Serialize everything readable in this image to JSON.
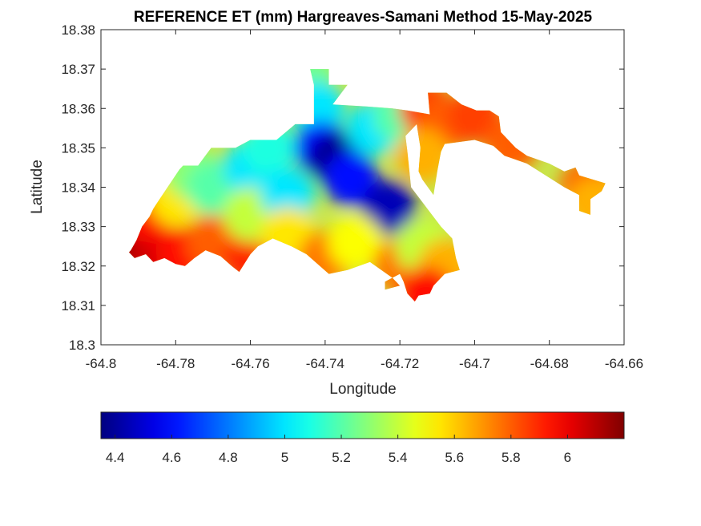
{
  "chart_data": {
    "type": "heatmap",
    "title": "REFERENCE ET (mm) Hargreaves-Samani Method  15-May-2025",
    "xlabel": "Longitude",
    "ylabel": "Latitude",
    "xlim": [
      -64.8,
      -64.66
    ],
    "ylim": [
      18.3,
      18.38
    ],
    "x_ticks": [
      "-64.8",
      "-64.78",
      "-64.76",
      "-64.74",
      "-64.72",
      "-64.7",
      "-64.68",
      "-64.66"
    ],
    "y_ticks": [
      "18.38",
      "18.37",
      "18.36",
      "18.35",
      "18.34",
      "18.33",
      "18.32",
      "18.31",
      "18.3"
    ],
    "grid": false,
    "colormap": "jet",
    "colorbar": {
      "orientation": "horizontal",
      "placement": "bottom",
      "range": [
        4.35,
        6.2
      ],
      "ticks": [
        "4.4",
        "4.6",
        "4.8",
        "5",
        "5.2",
        "5.4",
        "5.6",
        "5.8",
        "6"
      ]
    },
    "field_samples": [
      {
        "lon": -64.791,
        "lat": 18.325,
        "et": 6.15
      },
      {
        "lon": -64.785,
        "lat": 18.321,
        "et": 6.05
      },
      {
        "lon": -64.778,
        "lat": 18.323,
        "et": 5.95
      },
      {
        "lon": -64.77,
        "lat": 18.326,
        "et": 5.8
      },
      {
        "lon": -64.76,
        "lat": 18.322,
        "et": 5.9
      },
      {
        "lon": -64.788,
        "lat": 18.333,
        "et": 5.95
      },
      {
        "lon": -64.78,
        "lat": 18.337,
        "et": 5.55
      },
      {
        "lon": -64.776,
        "lat": 18.344,
        "et": 5.3
      },
      {
        "lon": -64.77,
        "lat": 18.34,
        "et": 5.2
      },
      {
        "lon": -64.76,
        "lat": 18.345,
        "et": 5.0
      },
      {
        "lon": -64.755,
        "lat": 18.35,
        "et": 5.1
      },
      {
        "lon": -64.76,
        "lat": 18.333,
        "et": 5.4
      },
      {
        "lon": -64.75,
        "lat": 18.338,
        "et": 5.0
      },
      {
        "lon": -64.75,
        "lat": 18.328,
        "et": 5.55
      },
      {
        "lon": -64.74,
        "lat": 18.322,
        "et": 5.75
      },
      {
        "lon": -64.745,
        "lat": 18.368,
        "et": 5.25
      },
      {
        "lon": -64.742,
        "lat": 18.36,
        "et": 5.0
      },
      {
        "lon": -64.741,
        "lat": 18.35,
        "et": 4.6
      },
      {
        "lon": -64.737,
        "lat": 18.347,
        "et": 4.38
      },
      {
        "lon": -64.733,
        "lat": 18.342,
        "et": 4.6
      },
      {
        "lon": -64.723,
        "lat": 18.335,
        "et": 4.45
      },
      {
        "lon": -64.727,
        "lat": 18.355,
        "et": 5.0
      },
      {
        "lon": -64.72,
        "lat": 18.358,
        "et": 5.2
      },
      {
        "lon": -64.713,
        "lat": 18.36,
        "et": 5.85
      },
      {
        "lon": -64.708,
        "lat": 18.356,
        "et": 5.8
      },
      {
        "lon": -64.714,
        "lat": 18.348,
        "et": 5.65
      },
      {
        "lon": -64.732,
        "lat": 18.326,
        "et": 5.5
      },
      {
        "lon": -64.72,
        "lat": 18.32,
        "et": 5.75
      },
      {
        "lon": -64.714,
        "lat": 18.325,
        "et": 5.4
      },
      {
        "lon": -64.708,
        "lat": 18.32,
        "et": 5.65
      },
      {
        "lon": -64.713,
        "lat": 18.313,
        "et": 5.95
      },
      {
        "lon": -64.7,
        "lat": 18.358,
        "et": 5.85
      },
      {
        "lon": -64.69,
        "lat": 18.351,
        "et": 5.8
      },
      {
        "lon": -64.67,
        "lat": 18.34,
        "et": 5.8
      },
      {
        "lon": -64.668,
        "lat": 18.336,
        "et": 5.65
      }
    ],
    "domain_outline": [
      [
        -64.7925,
        18.3235
      ],
      [
        -64.792,
        18.324
      ],
      [
        -64.7905,
        18.3265
      ],
      [
        -64.789,
        18.33
      ],
      [
        -64.787,
        18.3325
      ],
      [
        -64.786,
        18.3345
      ],
      [
        -64.785,
        18.336
      ],
      [
        -64.779,
        18.3445
      ],
      [
        -64.778,
        18.3455
      ],
      [
        -64.774,
        18.3455
      ],
      [
        -64.7705,
        18.35
      ],
      [
        -64.764,
        18.35
      ],
      [
        -64.76,
        18.352
      ],
      [
        -64.753,
        18.352
      ],
      [
        -64.748,
        18.356
      ],
      [
        -64.743,
        18.356
      ],
      [
        -64.743,
        18.366
      ],
      [
        -64.744,
        18.37
      ],
      [
        -64.739,
        18.37
      ],
      [
        -64.739,
        18.366
      ],
      [
        -64.734,
        18.366
      ],
      [
        -64.738,
        18.361
      ],
      [
        -64.729,
        18.3605
      ],
      [
        -64.722,
        18.36
      ],
      [
        -64.718,
        18.3595
      ],
      [
        -64.712,
        18.3585
      ],
      [
        -64.7125,
        18.364
      ],
      [
        -64.7075,
        18.364
      ],
      [
        -64.7035,
        18.361
      ],
      [
        -64.6995,
        18.3595
      ],
      [
        -64.696,
        18.3595
      ],
      [
        -64.6935,
        18.358
      ],
      [
        -64.693,
        18.354
      ],
      [
        -64.689,
        18.35
      ],
      [
        -64.686,
        18.348
      ],
      [
        -64.68,
        18.346
      ],
      [
        -64.676,
        18.344
      ],
      [
        -64.673,
        18.345
      ],
      [
        -64.672,
        18.343
      ],
      [
        -64.665,
        18.341
      ],
      [
        -64.666,
        18.339
      ],
      [
        -64.669,
        18.337
      ],
      [
        -64.669,
        18.333
      ],
      [
        -64.672,
        18.334
      ],
      [
        -64.672,
        18.338
      ],
      [
        -64.676,
        18.34
      ],
      [
        -64.681,
        18.343
      ],
      [
        -64.686,
        18.346
      ],
      [
        -64.692,
        18.348
      ],
      [
        -64.695,
        18.3505
      ],
      [
        -64.7,
        18.352
      ],
      [
        -64.708,
        18.351
      ],
      [
        -64.709,
        18.349
      ],
      [
        -64.71,
        18.344
      ],
      [
        -64.711,
        18.338
      ],
      [
        -64.714,
        18.342
      ],
      [
        -64.715,
        18.344
      ],
      [
        -64.7145,
        18.35
      ],
      [
        -64.7155,
        18.356
      ],
      [
        -64.7185,
        18.353
      ],
      [
        -64.718,
        18.349
      ],
      [
        -64.717,
        18.34
      ],
      [
        -64.713,
        18.335
      ],
      [
        -64.709,
        18.33
      ],
      [
        -64.706,
        18.327
      ],
      [
        -64.705,
        18.322
      ],
      [
        -64.704,
        18.319
      ],
      [
        -64.708,
        18.318
      ],
      [
        -64.711,
        18.315
      ],
      [
        -64.712,
        18.313
      ],
      [
        -64.715,
        18.3125
      ],
      [
        -64.716,
        18.311
      ],
      [
        -64.718,
        18.313
      ],
      [
        -64.719,
        18.316
      ],
      [
        -64.72,
        18.318
      ],
      [
        -64.723,
        18.3165
      ],
      [
        -64.724,
        18.316
      ],
      [
        -64.724,
        18.314
      ],
      [
        -64.72,
        18.315
      ],
      [
        -64.722,
        18.317
      ],
      [
        -64.728,
        18.321
      ],
      [
        -64.734,
        18.319
      ],
      [
        -64.739,
        18.318
      ],
      [
        -64.745,
        18.323
      ],
      [
        -64.749,
        18.325
      ],
      [
        -64.754,
        18.327
      ],
      [
        -64.758,
        18.325
      ],
      [
        -64.76,
        18.323
      ],
      [
        -64.763,
        18.3185
      ],
      [
        -64.765,
        18.32
      ],
      [
        -64.768,
        18.3225
      ],
      [
        -64.772,
        18.324
      ],
      [
        -64.775,
        18.322
      ],
      [
        -64.7775,
        18.32
      ],
      [
        -64.78,
        18.3205
      ],
      [
        -64.783,
        18.322
      ],
      [
        -64.786,
        18.321
      ],
      [
        -64.788,
        18.323
      ],
      [
        -64.791,
        18.322
      ]
    ]
  }
}
